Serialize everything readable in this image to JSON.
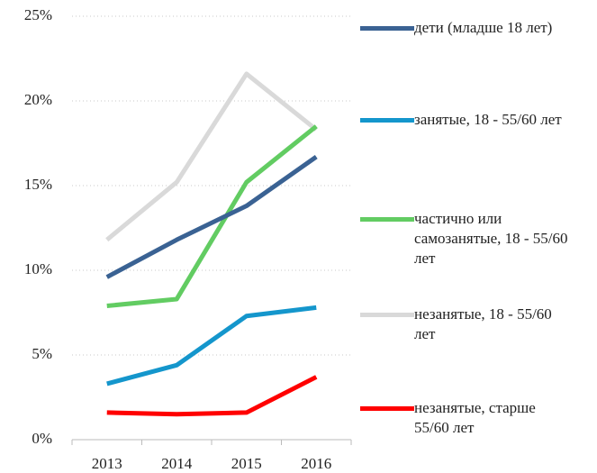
{
  "chart_data": {
    "type": "line",
    "categories": [
      "2013",
      "2014",
      "2015",
      "2016"
    ],
    "series": [
      {
        "name": "дети (младше 18 лет)",
        "color": "#3a6293",
        "values": [
          9.6,
          11.8,
          13.8,
          16.7
        ]
      },
      {
        "name": "занятые, 18 - 55/60 лет",
        "color": "#1496cc",
        "values": [
          3.3,
          4.4,
          7.3,
          7.8
        ]
      },
      {
        "name": "частично или самозанятые, 18 - 55/60 лет",
        "color": "#62cc62",
        "values": [
          7.9,
          8.3,
          15.2,
          18.5
        ]
      },
      {
        "name": "незанятые, 18 - 55/60 лет",
        "color": "#d9d9d9",
        "values": [
          11.8,
          15.2,
          21.6,
          18.3
        ]
      },
      {
        "name": "незанятые, старше 55/60 лет",
        "color": "#ff0000",
        "values": [
          1.6,
          1.5,
          1.6,
          3.7
        ]
      }
    ],
    "ylim": [
      0,
      25
    ],
    "yticks": [
      {
        "value": 0,
        "label": "0%"
      },
      {
        "value": 5,
        "label": "5%"
      },
      {
        "value": 10,
        "label": "10%"
      },
      {
        "value": 15,
        "label": "15%"
      },
      {
        "value": 20,
        "label": "20%"
      },
      {
        "value": 25,
        "label": "25%"
      }
    ],
    "grid": true
  }
}
